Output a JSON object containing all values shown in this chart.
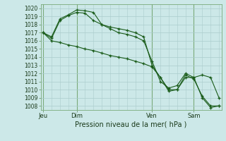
{
  "background_color": "#cce8e8",
  "grid_color": "#aacccc",
  "line_color": "#1a5c1a",
  "title": "Pression niveau de la mer( hPa )",
  "ylim": [
    1007.5,
    1020.5
  ],
  "yticks": [
    1008,
    1009,
    1010,
    1011,
    1012,
    1013,
    1014,
    1015,
    1016,
    1017,
    1018,
    1019,
    1020
  ],
  "xlim": [
    -0.3,
    21.3
  ],
  "x_day_labels": [
    {
      "label": "Jeu",
      "x": 0.0
    },
    {
      "label": "Dim",
      "x": 4.0
    },
    {
      "label": "Ven",
      "x": 13.0
    },
    {
      "label": "Sam",
      "x": 18.0
    }
  ],
  "series": [
    {
      "x": [
        0,
        1,
        2,
        3,
        4,
        5,
        6,
        7,
        8,
        9,
        10,
        11,
        12,
        13,
        14,
        15,
        16,
        17,
        18,
        19,
        20,
        21
      ],
      "y": [
        1017.0,
        1016.5,
        1018.7,
        1019.2,
        1019.8,
        1019.7,
        1019.5,
        1018.0,
        1017.7,
        1017.5,
        1017.3,
        1017.0,
        1016.5,
        1013.0,
        1011.5,
        1009.8,
        1010.0,
        1011.5,
        1011.5,
        1009.0,
        1007.8,
        1008.0
      ]
    },
    {
      "x": [
        0,
        1,
        2,
        3,
        4,
        5,
        6,
        7,
        8,
        9,
        10,
        11,
        12,
        13,
        14,
        15,
        16,
        17,
        18,
        19,
        20,
        21
      ],
      "y": [
        1017.0,
        1016.3,
        1018.5,
        1019.1,
        1019.5,
        1019.4,
        1018.5,
        1018.0,
        1017.5,
        1017.0,
        1016.8,
        1016.5,
        1016.0,
        1013.5,
        1011.0,
        1010.2,
        1010.5,
        1012.0,
        1011.5,
        1011.8,
        1011.5,
        1009.0
      ]
    },
    {
      "x": [
        0,
        1,
        2,
        3,
        4,
        5,
        6,
        7,
        8,
        9,
        10,
        11,
        12,
        13,
        14,
        15,
        16,
        17,
        18,
        19,
        20,
        21
      ],
      "y": [
        1017.0,
        1016.0,
        1015.8,
        1015.5,
        1015.3,
        1015.0,
        1014.8,
        1014.5,
        1014.2,
        1014.0,
        1013.8,
        1013.5,
        1013.2,
        1012.8,
        1011.5,
        1010.0,
        1010.0,
        1011.8,
        1011.3,
        1009.2,
        1008.0,
        1008.0
      ]
    }
  ]
}
